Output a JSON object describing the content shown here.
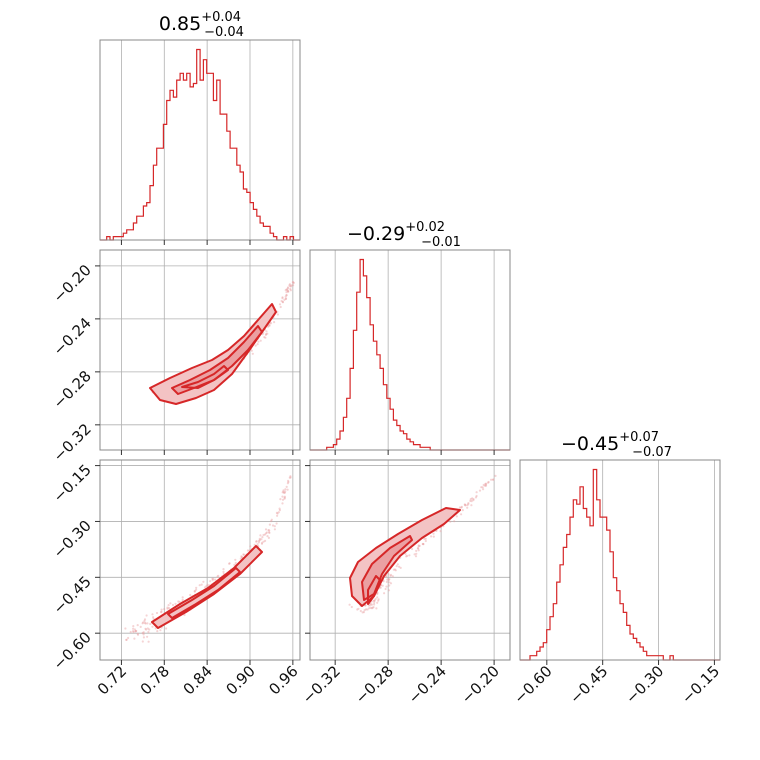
{
  "chart_data": {
    "type": "corner",
    "color": "#d62728",
    "grid": true,
    "parameters": [
      {
        "title_value": "0.85",
        "title_plus": "+0.04",
        "title_minus": "−0.04",
        "range": [
          0.69,
          0.97
        ],
        "ticks": [
          0.72,
          0.78,
          0.84,
          0.9,
          0.96
        ],
        "tick_labels": [
          "0.72",
          "0.78",
          "0.84",
          "0.90",
          "0.96"
        ],
        "hist_edges_start": 0.69,
        "hist_bin_width": 0.00467,
        "hist_counts": [
          0,
          0,
          1,
          0,
          1,
          1,
          1,
          2,
          3,
          3,
          5,
          7,
          7,
          10,
          11,
          16,
          22,
          27,
          27,
          34,
          41,
          44,
          42,
          47,
          49,
          47,
          49,
          45,
          46,
          56,
          47,
          53,
          49,
          49,
          41,
          47,
          37,
          37,
          32,
          27,
          27,
          22,
          20,
          15,
          14,
          11,
          9,
          7,
          5,
          4,
          4,
          2,
          1,
          0,
          0,
          1,
          0,
          1,
          0,
          0
        ]
      },
      {
        "title_value": "−0.29",
        "title_plus": "+0.02",
        "title_minus": "−0.01",
        "range": [
          -0.339,
          -0.188
        ],
        "ticks": [
          -0.32,
          -0.28,
          -0.24,
          -0.2
        ],
        "tick_labels": [
          "−0.32",
          "−0.28",
          "−0.24",
          "−0.20"
        ],
        "hist_edges_start": -0.339,
        "hist_bin_width": 0.00252,
        "hist_counts": [
          0,
          0,
          0,
          0,
          0,
          1,
          1,
          2,
          4,
          7,
          12,
          19,
          30,
          44,
          58,
          70,
          64,
          56,
          46,
          40,
          35,
          30,
          24,
          19,
          15,
          11,
          9,
          7,
          6,
          4,
          3,
          2,
          2,
          1,
          1,
          1,
          0,
          0,
          0,
          0,
          0,
          0,
          0,
          0,
          0,
          0,
          0,
          0,
          0,
          0,
          0,
          0,
          0,
          0,
          0,
          0,
          0,
          0,
          0,
          0
        ]
      },
      {
        "title_value": "−0.45",
        "title_plus": "+0.07",
        "title_minus": "−0.07",
        "range": [
          -0.672,
          -0.135
        ],
        "ticks": [
          -0.6,
          -0.45,
          -0.3,
          -0.15
        ],
        "tick_labels": [
          "−0.60",
          "−0.45",
          "−0.30",
          "−0.15"
        ],
        "hist_edges_start": -0.672,
        "hist_bin_width": 0.00895,
        "hist_counts": [
          0,
          0,
          0,
          1,
          1,
          2,
          3,
          4,
          7,
          10,
          13,
          18,
          22,
          26,
          29,
          33,
          37,
          36,
          40,
          35,
          33,
          31,
          44,
          37,
          33,
          33,
          30,
          25,
          19,
          16,
          13,
          11,
          8,
          6,
          5,
          4,
          3,
          2,
          1,
          1,
          1,
          1,
          1,
          0,
          0,
          1,
          0,
          0,
          0,
          0,
          0,
          0,
          0,
          0,
          0,
          0,
          0,
          0,
          0,
          0
        ]
      }
    ],
    "pairs": [
      {
        "x_param": 0,
        "y_param": 1,
        "y_ticks": [
          -0.32,
          -0.28,
          -0.24,
          -0.2
        ],
        "y_tick_labels": [
          "−0.32",
          "−0.28",
          "−0.24",
          "−0.20"
        ],
        "y_range": [
          -0.339,
          -0.188
        ],
        "curve": {
          "x": [
            0.78,
            0.82,
            0.85,
            0.88,
            0.91,
            0.94,
            0.96
          ],
          "y": [
            -0.296,
            -0.294,
            -0.285,
            -0.272,
            -0.256,
            -0.232,
            -0.212
          ]
        }
      },
      {
        "x_param": 0,
        "y_param": 2,
        "y_ticks": [
          -0.6,
          -0.45,
          -0.3,
          -0.15
        ],
        "y_tick_labels": [
          "−0.60",
          "−0.45",
          "−0.30",
          "−0.15"
        ],
        "y_range": [
          -0.672,
          -0.135
        ],
        "curve": {
          "x": [
            0.74,
            0.78,
            0.82,
            0.86,
            0.9,
            0.93,
            0.96
          ],
          "y": [
            -0.61,
            -0.555,
            -0.505,
            -0.45,
            -0.385,
            -0.32,
            -0.16
          ]
        }
      },
      {
        "x_param": 1,
        "y_param": 2,
        "y_ticks": [
          -0.6,
          -0.45,
          -0.3,
          -0.15
        ],
        "y_tick_labels": [
          "−0.60",
          "−0.45",
          "−0.30",
          "−0.15"
        ],
        "y_range": [
          -0.672,
          -0.135
        ],
        "curve": {
          "x": [
            -0.3,
            -0.29,
            -0.28,
            -0.26,
            -0.24,
            -0.22,
            -0.2
          ],
          "y": [
            -0.53,
            -0.49,
            -0.44,
            -0.37,
            -0.31,
            -0.255,
            -0.18
          ]
        }
      }
    ]
  }
}
